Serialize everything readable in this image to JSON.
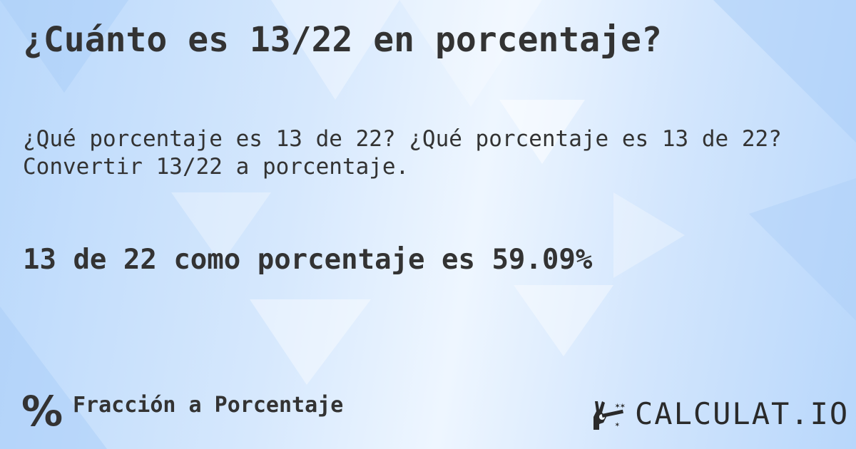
{
  "title": "¿Cuánto es 13/22 en porcentaje?",
  "description": "¿Qué porcentaje es 13 de 22? ¿Qué porcentaje es 13 de 22?\nConvertir 13/22 a porcentaje.",
  "result": "13 de 22 como porcentaje es 59.09%",
  "footer": {
    "icon": "percent-icon",
    "label": "Fracción a Porcentaje"
  },
  "logo": {
    "icon": "magic-hand-icon",
    "text": "CALCULAT.IO"
  },
  "colors": {
    "text": "#333333",
    "background": "#cfe3fc"
  }
}
